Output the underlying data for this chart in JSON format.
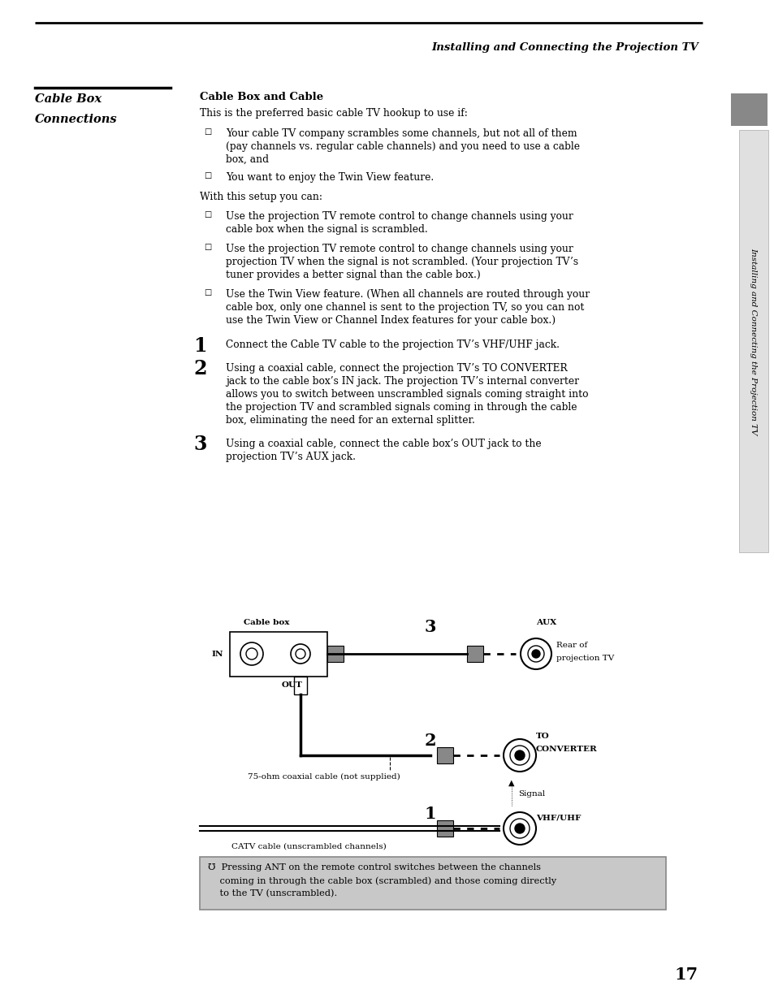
{
  "bg_color": "#ffffff",
  "page_width": 9.54,
  "page_height": 12.3,
  "header_text": "Installing and Connecting the Projection TV",
  "section_title_line1": "Cable Box",
  "section_title_line2": "Connections",
  "subsection_title": "Cable Box and Cable",
  "intro_text": "This is the preferred basic cable TV hookup to use if:",
  "bullet1_line1": "Your cable TV company scrambles some channels, but not all of them",
  "bullet1_line2": "(pay channels vs. regular cable channels) and you need to use a cable",
  "bullet1_line3": "box, and",
  "bullet2": "You want to enjoy the Twin View feature.",
  "with_setup": "With this setup you can:",
  "sub_bullet1_line1": "Use the projection TV remote control to change channels using your",
  "sub_bullet1_line2": "cable box when the signal is scrambled.",
  "sub_bullet2_line1": "Use the projection TV remote control to change channels using your",
  "sub_bullet2_line2": "projection TV when the signal is not scrambled. (Your projection TV’s",
  "sub_bullet2_line3": "tuner provides a better signal than the cable box.)",
  "sub_bullet3_line1": "Use the Twin View feature. (When all channels are routed through your",
  "sub_bullet3_line2": "cable box, only one channel is sent to the projection TV, so you can not",
  "sub_bullet3_line3": "use the Twin View or Channel Index features for your cable box.)",
  "step1": "Connect the Cable TV cable to the projection TV’s VHF/UHF jack.",
  "step2_line1": "Using a coaxial cable, connect the projection TV’s TO CONVERTER",
  "step2_line2": "jack to the cable box’s IN jack. The projection TV’s internal converter",
  "step2_line3": "allows you to switch between unscrambled signals coming straight into",
  "step2_line4": "the projection TV and scrambled signals coming in through the cable",
  "step2_line5": "box, eliminating the need for an external splitter.",
  "step3_line1": "Using a coaxial cable, connect the cable box’s OUT jack to the",
  "step3_line2": "projection TV’s AUX jack.",
  "page_number": "17",
  "sidebar_text": "Installing and Connecting the Projection TV",
  "diagram_label_cablebox": "Cable box",
  "diagram_label_in": "IN",
  "diagram_label_out": "OUT",
  "diagram_label_aux": "AUX",
  "diagram_label_rear": "Rear of",
  "diagram_label_projection": "projection TV",
  "diagram_label_to": "TO",
  "diagram_label_converter": "CONVERTER",
  "diagram_label_signal": "Signal",
  "diagram_label_vhf": "VHF/UHF",
  "diagram_label_75ohm": "75-ohm coaxial cable (not supplied)",
  "diagram_label_catv": "CATV cable (unscrambled channels)",
  "note_line1": "℧  Pressing ANT on the remote control switches between the channels",
  "note_line2": "    coming in through the cable box (scrambled) and those coming directly",
  "note_line3": "    to the TV (unscrambled).",
  "note_bg_color": "#c8c8c8",
  "note_border_color": "#888888"
}
